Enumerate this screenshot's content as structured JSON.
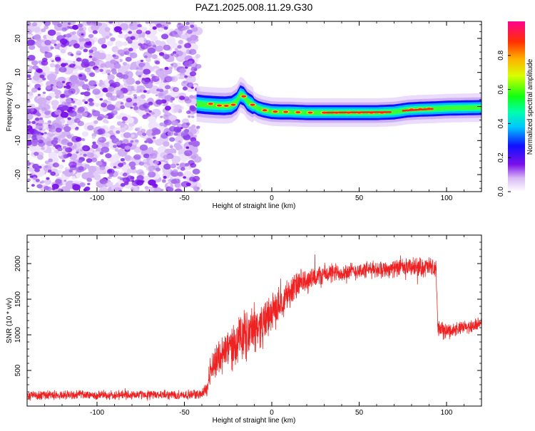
{
  "figure": {
    "title": "PAZ1.2025.008.11.29.G30"
  },
  "chart_data": [
    {
      "type": "heatmap",
      "title": "PAZ1.2025.008.11.29.G30",
      "xlabel": "Height of straight line (km)",
      "ylabel": "Frequency (Hz)",
      "xlim": [
        -140,
        120
      ],
      "ylim": [
        -25,
        25
      ],
      "x_ticks": [
        -100,
        -50,
        0,
        50,
        100
      ],
      "y_ticks": [
        -20,
        -10,
        0,
        10,
        20
      ],
      "colorbar": {
        "label": "Normalized spectral amplitude",
        "range": [
          0,
          1
        ],
        "ticks": [
          0.0,
          0.2,
          0.4,
          0.6,
          0.8
        ]
      },
      "noise_region_x": [
        -140,
        -42
      ],
      "signal_trace": {
        "x": [
          -43,
          -38,
          -32,
          -27,
          -23,
          -20,
          -18,
          -16,
          -14,
          -11,
          -8,
          -5,
          -2,
          0,
          5,
          10,
          15,
          20,
          25,
          30,
          40,
          50,
          60,
          70,
          78,
          85,
          92,
          100,
          110,
          120
        ],
        "frequency": [
          0.8,
          0.5,
          0.3,
          0.2,
          0.4,
          1.5,
          3.5,
          3.0,
          1.5,
          0.5,
          -0.5,
          -1.0,
          -1.3,
          -1.5,
          -1.6,
          -1.6,
          -1.7,
          -1.8,
          -1.8,
          -1.8,
          -1.8,
          -1.8,
          -1.8,
          -1.6,
          -1.0,
          -0.8,
          -0.7,
          -0.5,
          -0.4,
          -0.3
        ]
      }
    },
    {
      "type": "line",
      "xlabel": "Height of straight line (km)",
      "ylabel": "SNR (10 * v/v)",
      "xlim": [
        -140,
        120
      ],
      "ylim": [
        0,
        2400
      ],
      "x_ticks": [
        -100,
        -50,
        0,
        50,
        100
      ],
      "y_ticks": [
        500,
        1000,
        1500,
        2000
      ],
      "color": "#ee2222",
      "series": [
        {
          "x": [
            -140,
            -120,
            -100,
            -80,
            -60,
            -45,
            -40,
            -37,
            -35,
            -30,
            -25,
            -20,
            -15,
            -10,
            -5,
            0,
            5,
            10,
            15,
            20,
            25,
            30,
            40,
            50,
            60,
            70,
            80,
            90,
            94,
            95,
            100,
            110,
            120
          ],
          "values": [
            150,
            160,
            150,
            160,
            155,
            160,
            170,
            250,
            550,
            700,
            800,
            900,
            1000,
            1100,
            1150,
            1300,
            1450,
            1600,
            1700,
            1750,
            1800,
            1850,
            1880,
            1900,
            1920,
            1930,
            1950,
            1950,
            1920,
            1100,
            1050,
            1100,
            1150
          ],
          "noise_amplitude": [
            60,
            60,
            60,
            60,
            60,
            60,
            60,
            100,
            200,
            250,
            280,
            300,
            320,
            300,
            280,
            250,
            220,
            200,
            180,
            160,
            150,
            140,
            120,
            110,
            110,
            110,
            120,
            130,
            130,
            110,
            100,
            90,
            90
          ]
        }
      ]
    }
  ]
}
